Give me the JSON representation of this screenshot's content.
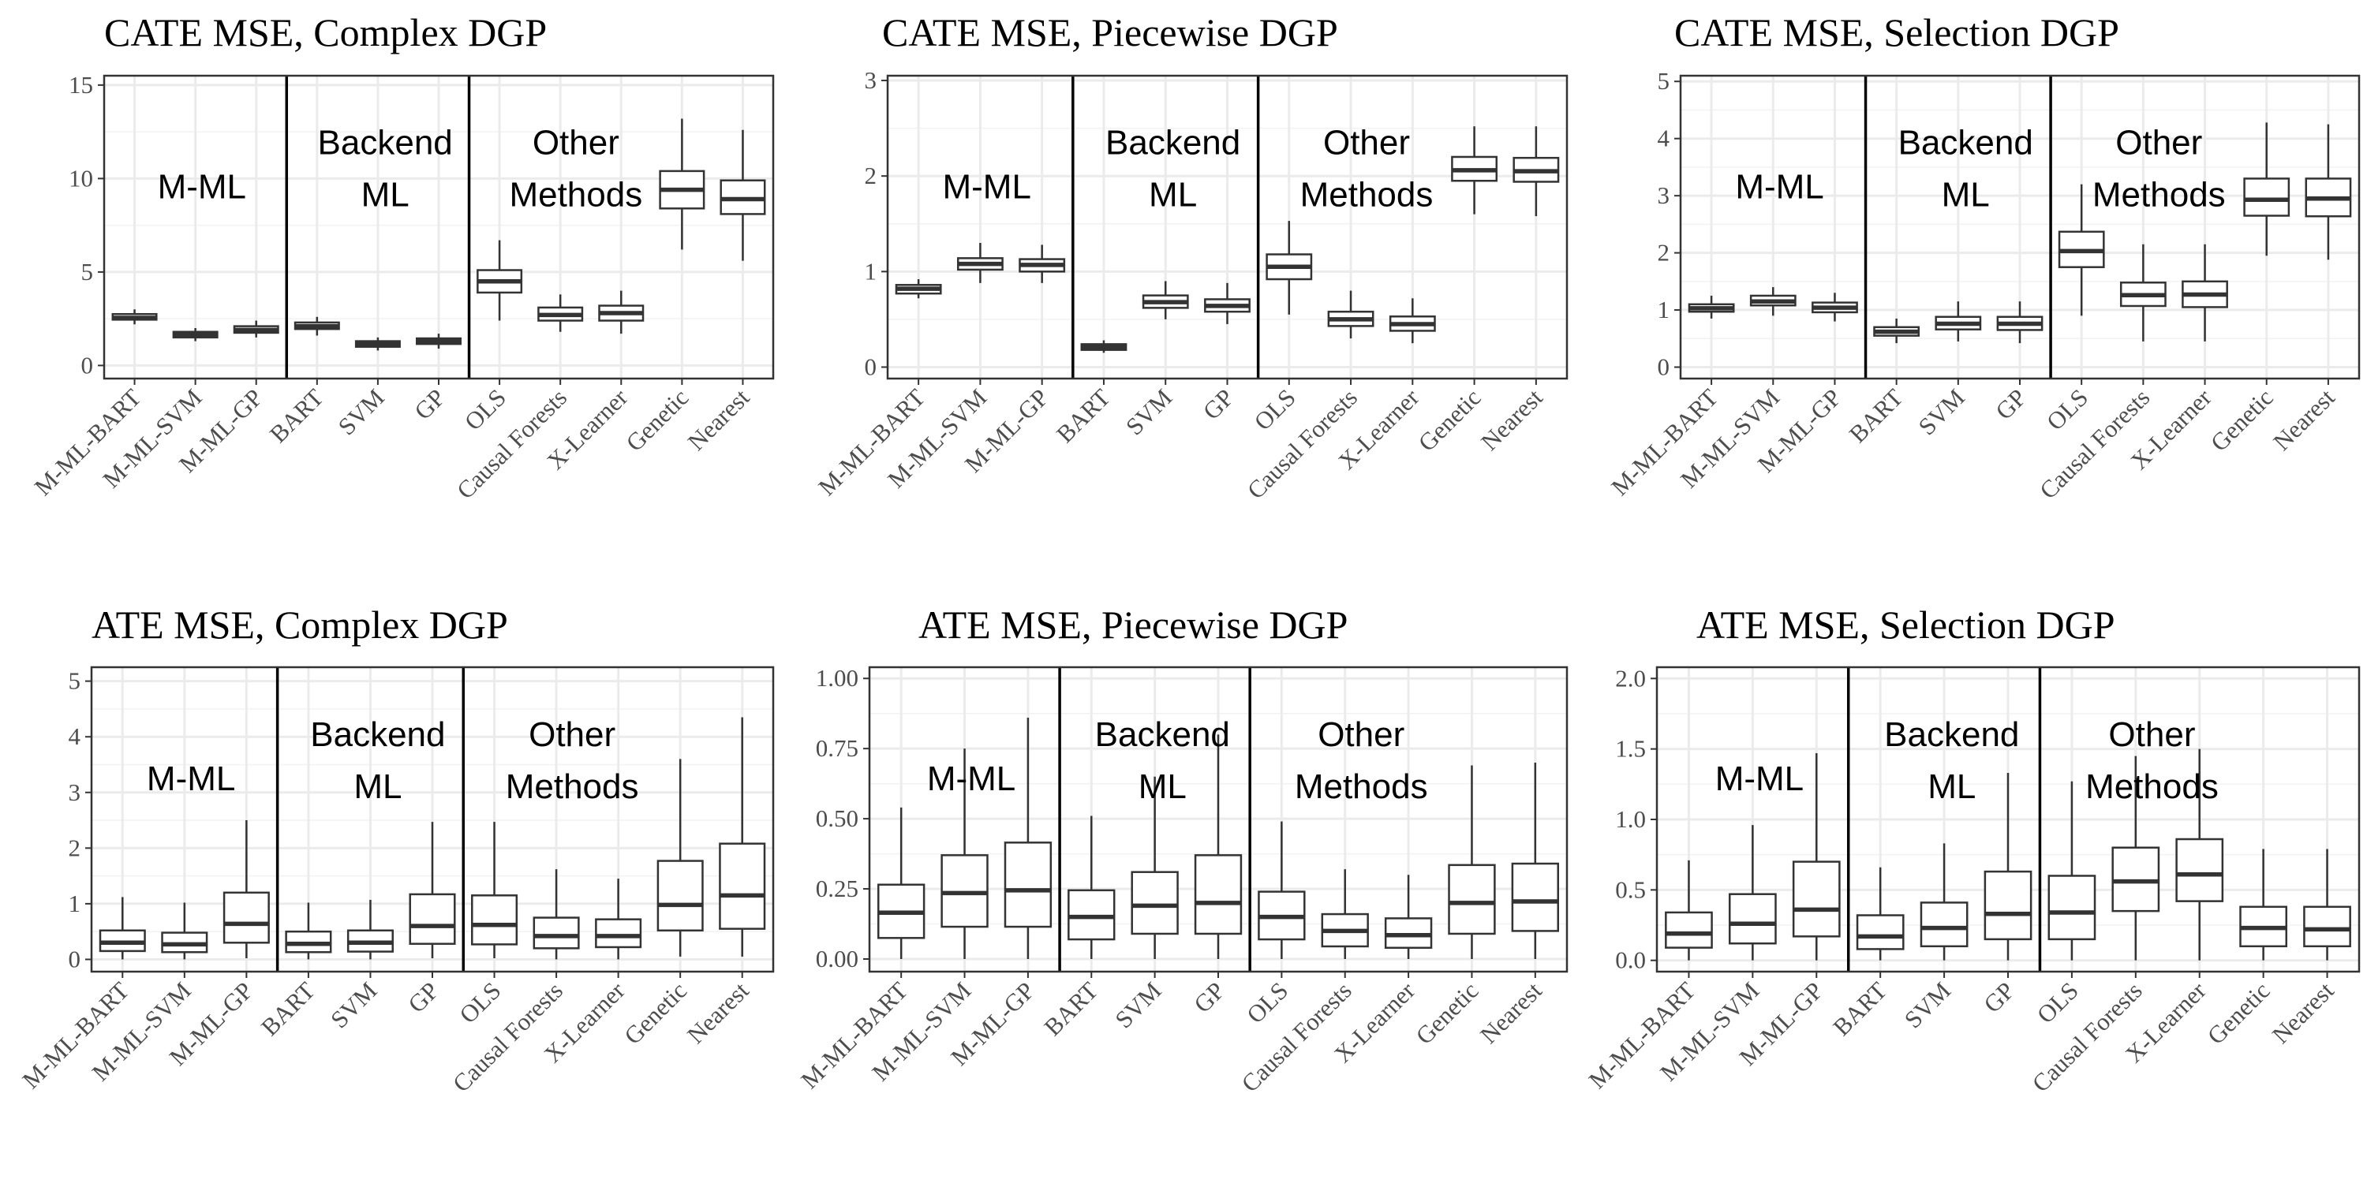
{
  "chart_data": [
    {
      "type": "boxplot",
      "title": "CATE MSE, Complex DGP",
      "categories": [
        "M-ML-BART",
        "M-ML-SVM",
        "M-ML-GP",
        "BART",
        "SVM",
        "GP",
        "OLS",
        "Causal Forests",
        "X-Learner",
        "Genetic",
        "Nearest"
      ],
      "ylim": [
        -0.7,
        15.5
      ],
      "yticks": [
        0,
        5,
        10,
        15
      ],
      "ytick_labels": [
        "0",
        "5",
        "10",
        "15"
      ],
      "groups": [
        [
          "M-ML"
        ],
        [
          "Backend",
          "ML"
        ],
        [
          "Other",
          "Methods"
        ]
      ],
      "boxes": [
        {
          "min": 2.2,
          "q1": 2.45,
          "median": 2.55,
          "q3": 2.75,
          "max": 3.0
        },
        {
          "min": 1.3,
          "q1": 1.5,
          "median": 1.65,
          "q3": 1.8,
          "max": 2.0
        },
        {
          "min": 1.5,
          "q1": 1.75,
          "median": 1.9,
          "q3": 2.1,
          "max": 2.4
        },
        {
          "min": 1.6,
          "q1": 1.95,
          "median": 2.1,
          "q3": 2.3,
          "max": 2.6
        },
        {
          "min": 0.8,
          "q1": 1.0,
          "median": 1.15,
          "q3": 1.3,
          "max": 1.5
        },
        {
          "min": 0.9,
          "q1": 1.15,
          "median": 1.3,
          "q3": 1.45,
          "max": 1.7
        },
        {
          "min": 2.4,
          "q1": 3.9,
          "median": 4.5,
          "q3": 5.1,
          "max": 6.7
        },
        {
          "min": 1.8,
          "q1": 2.4,
          "median": 2.7,
          "q3": 3.1,
          "max": 3.8
        },
        {
          "min": 1.7,
          "q1": 2.4,
          "median": 2.8,
          "q3": 3.2,
          "max": 4.0
        },
        {
          "min": 6.2,
          "q1": 8.4,
          "median": 9.4,
          "q3": 10.4,
          "max": 13.2
        },
        {
          "min": 5.6,
          "q1": 8.1,
          "median": 8.9,
          "q3": 9.9,
          "max": 12.6
        }
      ]
    },
    {
      "type": "boxplot",
      "title": "CATE MSE, Piecewise DGP",
      "categories": [
        "M-ML-BART",
        "M-ML-SVM",
        "M-ML-GP",
        "BART",
        "SVM",
        "GP",
        "OLS",
        "Causal Forests",
        "X-Learner",
        "Genetic",
        "Nearest"
      ],
      "ylim": [
        -0.12,
        3.05
      ],
      "yticks": [
        0,
        1,
        2,
        3
      ],
      "ytick_labels": [
        "0",
        "1",
        "2",
        "3"
      ],
      "groups": [
        [
          "M-ML"
        ],
        [
          "Backend",
          "ML"
        ],
        [
          "Other",
          "Methods"
        ]
      ],
      "boxes": [
        {
          "min": 0.72,
          "q1": 0.77,
          "median": 0.82,
          "q3": 0.86,
          "max": 0.92
        },
        {
          "min": 0.88,
          "q1": 1.02,
          "median": 1.08,
          "q3": 1.14,
          "max": 1.3
        },
        {
          "min": 0.88,
          "q1": 1.0,
          "median": 1.07,
          "q3": 1.13,
          "max": 1.28
        },
        {
          "min": 0.15,
          "q1": 0.18,
          "median": 0.21,
          "q3": 0.24,
          "max": 0.28
        },
        {
          "min": 0.5,
          "q1": 0.62,
          "median": 0.68,
          "q3": 0.75,
          "max": 0.9
        },
        {
          "min": 0.45,
          "q1": 0.58,
          "median": 0.64,
          "q3": 0.71,
          "max": 0.88
        },
        {
          "min": 0.55,
          "q1": 0.92,
          "median": 1.05,
          "q3": 1.18,
          "max": 1.53
        },
        {
          "min": 0.3,
          "q1": 0.43,
          "median": 0.5,
          "q3": 0.58,
          "max": 0.8
        },
        {
          "min": 0.25,
          "q1": 0.38,
          "median": 0.45,
          "q3": 0.53,
          "max": 0.72
        },
        {
          "min": 1.6,
          "q1": 1.95,
          "median": 2.06,
          "q3": 2.2,
          "max": 2.52
        },
        {
          "min": 1.58,
          "q1": 1.94,
          "median": 2.05,
          "q3": 2.19,
          "max": 2.52
        }
      ]
    },
    {
      "type": "boxplot",
      "title": "CATE MSE, Selection DGP",
      "categories": [
        "M-ML-BART",
        "M-ML-SVM",
        "M-ML-GP",
        "BART",
        "SVM",
        "GP",
        "OLS",
        "Causal Forests",
        "X-Learner",
        "Genetic",
        "Nearest"
      ],
      "ylim": [
        -0.2,
        5.1
      ],
      "yticks": [
        0,
        1,
        2,
        3,
        4,
        5
      ],
      "ytick_labels": [
        "0",
        "1",
        "2",
        "3",
        "4",
        "5"
      ],
      "groups": [
        [
          "M-ML"
        ],
        [
          "Backend",
          "ML"
        ],
        [
          "Other",
          "Methods"
        ]
      ],
      "boxes": [
        {
          "min": 0.85,
          "q1": 0.97,
          "median": 1.03,
          "q3": 1.1,
          "max": 1.25
        },
        {
          "min": 0.9,
          "q1": 1.08,
          "median": 1.15,
          "q3": 1.25,
          "max": 1.4
        },
        {
          "min": 0.8,
          "q1": 0.96,
          "median": 1.04,
          "q3": 1.13,
          "max": 1.3
        },
        {
          "min": 0.42,
          "q1": 0.55,
          "median": 0.62,
          "q3": 0.7,
          "max": 0.85
        },
        {
          "min": 0.45,
          "q1": 0.66,
          "median": 0.76,
          "q3": 0.88,
          "max": 1.15
        },
        {
          "min": 0.42,
          "q1": 0.65,
          "median": 0.76,
          "q3": 0.88,
          "max": 1.15
        },
        {
          "min": 0.9,
          "q1": 1.75,
          "median": 2.03,
          "q3": 2.37,
          "max": 3.2
        },
        {
          "min": 0.45,
          "q1": 1.07,
          "median": 1.26,
          "q3": 1.48,
          "max": 2.15
        },
        {
          "min": 0.45,
          "q1": 1.05,
          "median": 1.27,
          "q3": 1.5,
          "max": 2.15
        },
        {
          "min": 1.95,
          "q1": 2.65,
          "median": 2.93,
          "q3": 3.3,
          "max": 4.28
        },
        {
          "min": 1.88,
          "q1": 2.64,
          "median": 2.95,
          "q3": 3.3,
          "max": 4.25
        }
      ]
    },
    {
      "type": "boxplot",
      "title": "ATE MSE, Complex DGP",
      "categories": [
        "M-ML-BART",
        "M-ML-SVM",
        "M-ML-GP",
        "BART",
        "SVM",
        "GP",
        "OLS",
        "Causal Forests",
        "X-Learner",
        "Genetic",
        "Nearest"
      ],
      "ylim": [
        -0.22,
        5.25
      ],
      "yticks": [
        0,
        1,
        2,
        3,
        4,
        5
      ],
      "ytick_labels": [
        "0",
        "1",
        "2",
        "3",
        "4",
        "5"
      ],
      "groups": [
        [
          "M-ML"
        ],
        [
          "Backend",
          "ML"
        ],
        [
          "Other",
          "Methods"
        ]
      ],
      "boxes": [
        {
          "min": 0.0,
          "q1": 0.15,
          "median": 0.3,
          "q3": 0.52,
          "max": 1.12
        },
        {
          "min": 0.0,
          "q1": 0.13,
          "median": 0.27,
          "q3": 0.48,
          "max": 1.02
        },
        {
          "min": 0.02,
          "q1": 0.3,
          "median": 0.64,
          "q3": 1.2,
          "max": 2.5
        },
        {
          "min": 0.0,
          "q1": 0.13,
          "median": 0.28,
          "q3": 0.5,
          "max": 1.02
        },
        {
          "min": 0.0,
          "q1": 0.14,
          "median": 0.3,
          "q3": 0.52,
          "max": 1.07
        },
        {
          "min": 0.02,
          "q1": 0.28,
          "median": 0.6,
          "q3": 1.17,
          "max": 2.47
        },
        {
          "min": 0.02,
          "q1": 0.27,
          "median": 0.62,
          "q3": 1.15,
          "max": 2.47
        },
        {
          "min": 0.0,
          "q1": 0.2,
          "median": 0.42,
          "q3": 0.75,
          "max": 1.62
        },
        {
          "min": 0.0,
          "q1": 0.22,
          "median": 0.42,
          "q3": 0.72,
          "max": 1.45
        },
        {
          "min": 0.05,
          "q1": 0.52,
          "median": 0.98,
          "q3": 1.77,
          "max": 3.6
        },
        {
          "min": 0.05,
          "q1": 0.55,
          "median": 1.15,
          "q3": 2.08,
          "max": 4.35
        }
      ]
    },
    {
      "type": "boxplot",
      "title": "ATE MSE, Piecewise DGP",
      "categories": [
        "M-ML-BART",
        "M-ML-SVM",
        "M-ML-GP",
        "BART",
        "SVM",
        "GP",
        "OLS",
        "Causal Forests",
        "X-Learner",
        "Genetic",
        "Nearest"
      ],
      "ylim": [
        -0.045,
        1.04
      ],
      "yticks": [
        0,
        0.25,
        0.5,
        0.75,
        1.0
      ],
      "ytick_labels": [
        "0.00",
        "0.25",
        "0.50",
        "0.75",
        "1.00"
      ],
      "groups": [
        [
          "M-ML"
        ],
        [
          "Backend",
          "ML"
        ],
        [
          "Other",
          "Methods"
        ]
      ],
      "boxes": [
        {
          "min": 0.0,
          "q1": 0.075,
          "median": 0.165,
          "q3": 0.265,
          "max": 0.54
        },
        {
          "min": 0.0,
          "q1": 0.115,
          "median": 0.235,
          "q3": 0.37,
          "max": 0.75
        },
        {
          "min": 0.0,
          "q1": 0.115,
          "median": 0.245,
          "q3": 0.415,
          "max": 0.86
        },
        {
          "min": 0.0,
          "q1": 0.07,
          "median": 0.15,
          "q3": 0.245,
          "max": 0.51
        },
        {
          "min": 0.0,
          "q1": 0.09,
          "median": 0.19,
          "q3": 0.31,
          "max": 0.65
        },
        {
          "min": 0.0,
          "q1": 0.09,
          "median": 0.2,
          "q3": 0.37,
          "max": 0.8
        },
        {
          "min": 0.0,
          "q1": 0.07,
          "median": 0.15,
          "q3": 0.24,
          "max": 0.49
        },
        {
          "min": 0.0,
          "q1": 0.045,
          "median": 0.1,
          "q3": 0.16,
          "max": 0.32
        },
        {
          "min": 0.0,
          "q1": 0.04,
          "median": 0.085,
          "q3": 0.145,
          "max": 0.3
        },
        {
          "min": 0.0,
          "q1": 0.09,
          "median": 0.2,
          "q3": 0.335,
          "max": 0.69
        },
        {
          "min": 0.0,
          "q1": 0.1,
          "median": 0.205,
          "q3": 0.34,
          "max": 0.7
        }
      ]
    },
    {
      "type": "boxplot",
      "title": "ATE MSE, Selection DGP",
      "categories": [
        "M-ML-BART",
        "M-ML-SVM",
        "M-ML-GP",
        "BART",
        "SVM",
        "GP",
        "OLS",
        "Causal Forests",
        "X-Learner",
        "Genetic",
        "Nearest"
      ],
      "ylim": [
        -0.08,
        2.08
      ],
      "yticks": [
        0,
        0.5,
        1.0,
        1.5,
        2.0
      ],
      "ytick_labels": [
        "0.0",
        "0.5",
        "1.0",
        "1.5",
        "2.0"
      ],
      "groups": [
        [
          "M-ML"
        ],
        [
          "Backend",
          "ML"
        ],
        [
          "Other",
          "Methods"
        ]
      ],
      "boxes": [
        {
          "min": 0.0,
          "q1": 0.09,
          "median": 0.19,
          "q3": 0.34,
          "max": 0.71
        },
        {
          "min": 0.0,
          "q1": 0.12,
          "median": 0.26,
          "q3": 0.47,
          "max": 0.96
        },
        {
          "min": 0.0,
          "q1": 0.17,
          "median": 0.36,
          "q3": 0.7,
          "max": 1.47
        },
        {
          "min": 0.0,
          "q1": 0.08,
          "median": 0.17,
          "q3": 0.32,
          "max": 0.66
        },
        {
          "min": 0.0,
          "q1": 0.1,
          "median": 0.23,
          "q3": 0.41,
          "max": 0.83
        },
        {
          "min": 0.0,
          "q1": 0.15,
          "median": 0.33,
          "q3": 0.63,
          "max": 1.33
        },
        {
          "min": 0.0,
          "q1": 0.15,
          "median": 0.34,
          "q3": 0.6,
          "max": 1.27
        },
        {
          "min": 0.0,
          "q1": 0.35,
          "median": 0.56,
          "q3": 0.8,
          "max": 1.45
        },
        {
          "min": 0.0,
          "q1": 0.42,
          "median": 0.61,
          "q3": 0.86,
          "max": 1.5
        },
        {
          "min": 0.0,
          "q1": 0.1,
          "median": 0.23,
          "q3": 0.38,
          "max": 0.79
        },
        {
          "min": 0.0,
          "q1": 0.1,
          "median": 0.22,
          "q3": 0.38,
          "max": 0.79
        }
      ]
    }
  ]
}
